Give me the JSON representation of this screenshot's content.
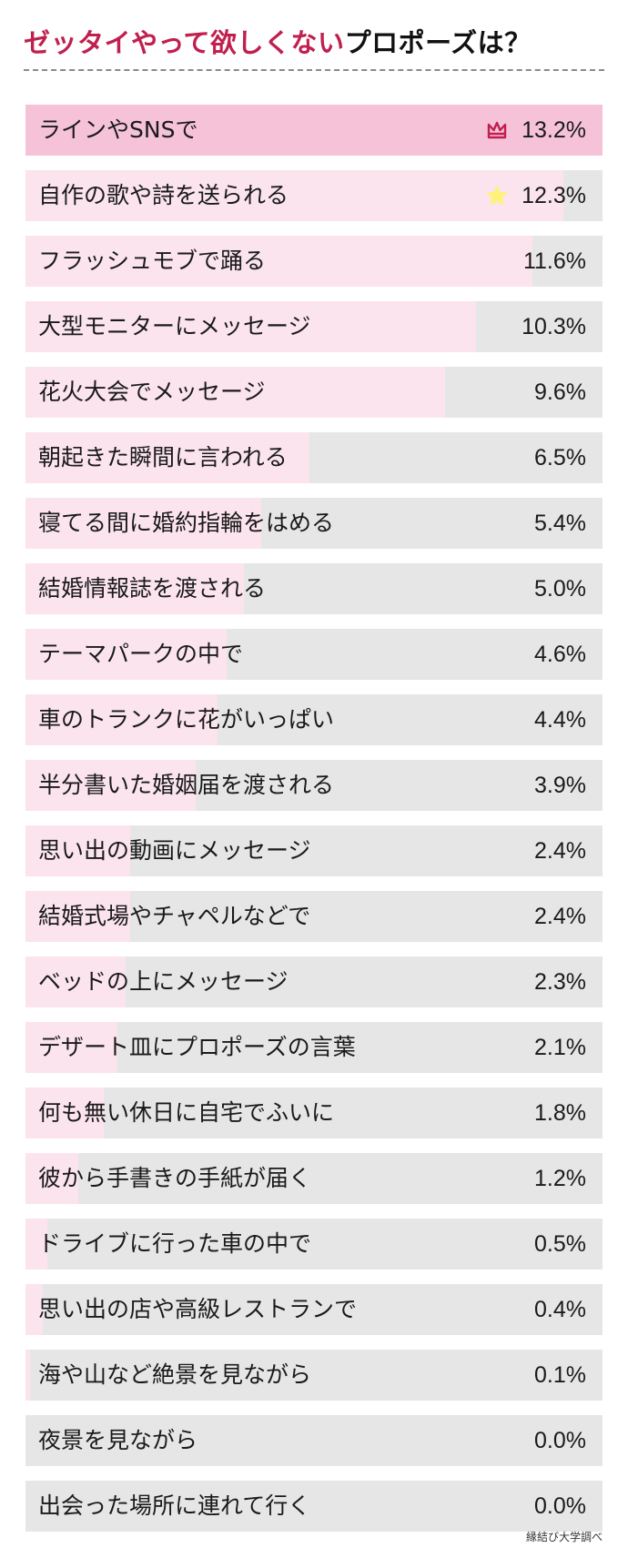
{
  "title": {
    "accent": "ゼッタイやって欲しくない",
    "rest": "プロポーズは？"
  },
  "source": "縁結び大学調べ",
  "colors": {
    "accent": "#c0204f",
    "fill_top": "#f5c2d8",
    "fill": "#fbe4ee",
    "track": "#e6e6e6",
    "crown": "#c0204f",
    "star": "#fff27a"
  },
  "chart_data": {
    "type": "bar",
    "orientation": "horizontal",
    "unit": "%",
    "xlim": [
      0,
      13.2
    ],
    "categories": [
      "ラインやSNSで",
      "自作の歌や詩を送られる",
      "フラッシュモブで踊る",
      "大型モニターにメッセージ",
      "花火大会でメッセージ",
      "朝起きた瞬間に言われる",
      "寝てる間に婚約指輪をはめる",
      "結婚情報誌を渡される",
      "テーマパークの中で",
      "車のトランクに花がいっぱい",
      "半分書いた婚姻届を渡される",
      "思い出の動画にメッセージ",
      "結婚式場やチャペルなどで",
      "ベッドの上にメッセージ",
      "デザート皿にプロポーズの言葉",
      "何も無い休日に自宅でふいに",
      "彼から手書きの手紙が届く",
      "ドライブに行った車の中で",
      "思い出の店や高級レストランで",
      "海や山など絶景を見ながら",
      "夜景を見ながら",
      "出会った場所に連れて行く"
    ],
    "values": [
      13.2,
      12.3,
      11.6,
      10.3,
      9.6,
      6.5,
      5.4,
      5.0,
      4.6,
      4.4,
      3.9,
      2.4,
      2.4,
      2.3,
      2.1,
      1.8,
      1.2,
      0.5,
      0.4,
      0.1,
      0.0,
      0.0
    ],
    "value_labels": [
      "13.2%",
      "12.3%",
      "11.6%",
      "10.3%",
      "9.6%",
      "6.5%",
      "5.4%",
      "5.0%",
      "4.6%",
      "4.4%",
      "3.9%",
      "2.4%",
      "2.4%",
      "2.3%",
      "2.1%",
      "1.8%",
      "1.2%",
      "0.5%",
      "0.4%",
      "0.1%",
      "0.0%",
      "0.0%"
    ],
    "markers": [
      {
        "rank": 1,
        "icon": "crown-icon"
      },
      {
        "rank": 2,
        "icon": "star-icon"
      }
    ]
  }
}
